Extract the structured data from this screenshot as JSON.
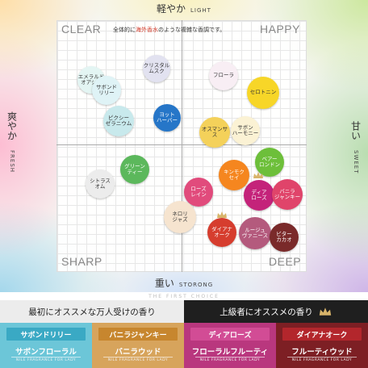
{
  "axes": {
    "top": {
      "jp": "軽やか",
      "en": "LIGHT"
    },
    "bottom": {
      "jp": "重い",
      "en": "STORONG"
    },
    "left": {
      "jp": "爽やか",
      "en": "FRESH"
    },
    "right": {
      "jp": "甘い",
      "en": "SWEET"
    }
  },
  "quadrants": {
    "top_left": "CLEAR",
    "top_right": "HAPPY",
    "bottom_left": "SHARP",
    "bottom_right": "DEEP"
  },
  "note": {
    "prefix": "全体的に",
    "highlight": "海外香水",
    "suffix": "のような複雑な香調です。"
  },
  "scents": [
    {
      "label": "エメラルド\nオアシス",
      "color": "#e3f5f3",
      "text_color": "#333333"
    },
    {
      "label": "クリスタル\nムスク",
      "color": "#e2e2f0",
      "text_color": "#333333"
    },
    {
      "label": "サボンド\nリリー",
      "color": "#dff3f6",
      "text_color": "#333333"
    },
    {
      "label": "ピクシー\nゼラニウム",
      "color": "#c8e9ec",
      "text_color": "#333333"
    },
    {
      "label": "ヨット\nハーバー",
      "color": "#2676c8",
      "text_color": "#ffffff"
    },
    {
      "label": "フローラ",
      "color": "#f8eef4",
      "text_color": "#333333"
    },
    {
      "label": "セロトニン",
      "color": "#f7d628",
      "text_color": "#333333"
    },
    {
      "label": "オスマンサス",
      "color": "#f4d15a",
      "text_color": "#333333"
    },
    {
      "label": "サボン\nハーモニー",
      "color": "#fbf2d4",
      "text_color": "#333333"
    },
    {
      "label": "グリーン\nティー",
      "color": "#5cb85c",
      "text_color": "#ffffff"
    },
    {
      "label": "シトラス\nオム",
      "color": "#ececec",
      "text_color": "#333333"
    },
    {
      "label": "ベアー\nロンドン",
      "color": "#6dbf3a",
      "text_color": "#ffffff"
    },
    {
      "label": "キンモク\nセイ",
      "color": "#f5861f",
      "text_color": "#ffffff"
    },
    {
      "label": "ローズ\nレイン",
      "color": "#e14b7c",
      "text_color": "#ffffff"
    },
    {
      "label": "ディア\nローズ",
      "color": "#c4237a",
      "text_color": "#ffffff"
    },
    {
      "label": "バニラ\nジャンキー",
      "color": "#e0446a",
      "text_color": "#ffffff"
    },
    {
      "label": "ネロリ\nジャズ",
      "color": "#f6e4cf",
      "text_color": "#333333"
    },
    {
      "label": "ダイアナ\nオーク",
      "color": "#d63d2e",
      "text_color": "#ffffff"
    },
    {
      "label": "ルージュ\nヴァニース",
      "color": "#b45a7d",
      "text_color": "#ffffff"
    },
    {
      "label": "ビター\nカカオ",
      "color": "#7a2a2a",
      "text_color": "#ffffff"
    }
  ],
  "watermark": "THE FIRST CHOICE",
  "recommend": {
    "left": "最初にオススメな万人受けの香り",
    "right": "上級者にオススメの香り"
  },
  "cards": [
    {
      "name": "サボンドリリー",
      "product": "サボンフローラル",
      "sub": "NILE FRAGRANCE FOR LADY",
      "bg": "#6cc6d8",
      "tag": "#3aa9c4"
    },
    {
      "name": "バニラジャンキー",
      "product": "バニラウッド",
      "sub": "NILE FRAGRANCE FOR LADY",
      "bg": "#d7a45c",
      "tag": "#c7862e"
    },
    {
      "name": "ディアローズ",
      "product": "フローラルフルーティ",
      "sub": "NILE FRAGRANCE FOR LADY",
      "bg": "#b9377e",
      "tag": "#d24c95"
    },
    {
      "name": "ダイアナオーク",
      "product": "フルーティウッド",
      "sub": "NILE FRAGRANCE FOR LADY",
      "bg": "#7d1f24",
      "tag": "#b3262c"
    }
  ]
}
